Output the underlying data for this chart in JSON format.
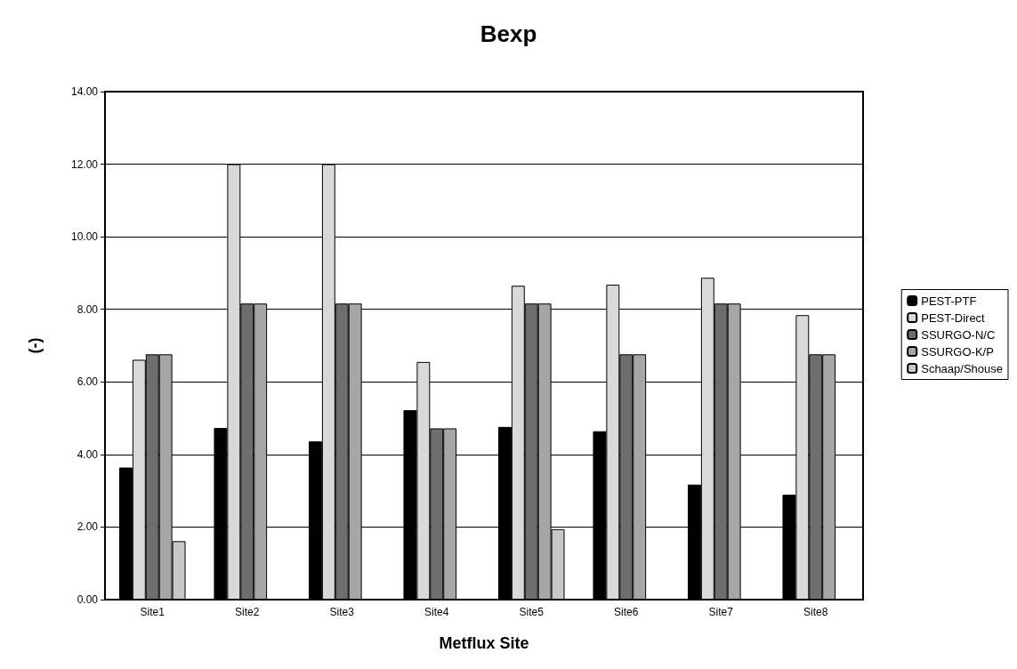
{
  "chart_data": {
    "type": "bar",
    "title": "Bexp",
    "xlabel": "Metflux Site",
    "ylabel": "(-)",
    "categories": [
      "Site1",
      "Site2",
      "Site3",
      "Site4",
      "Site5",
      "Site6",
      "Site7",
      "Site8"
    ],
    "series": [
      {
        "name": "PEST-PTF",
        "color": "#000000",
        "values": [
          3.64,
          4.73,
          4.36,
          5.22,
          4.76,
          4.64,
          3.17,
          2.89
        ]
      },
      {
        "name": "PEST-Direct",
        "color": "#d9d9d9",
        "values": [
          6.61,
          12.0,
          12.0,
          6.55,
          8.65,
          8.68,
          8.87,
          7.84
        ]
      },
      {
        "name": "SSURGO-N/C",
        "color": "#6e6e6e",
        "values": [
          6.76,
          8.16,
          8.16,
          4.72,
          8.16,
          6.76,
          8.16,
          6.76
        ]
      },
      {
        "name": "SSURGO-K/P",
        "color": "#a6a6a6",
        "values": [
          6.76,
          8.16,
          8.16,
          4.72,
          8.16,
          6.76,
          8.16,
          6.76
        ]
      },
      {
        "name": "Schaap/Shouse",
        "color": "#c8c8c8",
        "values": [
          1.61,
          null,
          null,
          null,
          1.94,
          null,
          null,
          null
        ]
      }
    ],
    "ylim": [
      0,
      14
    ],
    "yticks": [
      {
        "value": 0,
        "label": "0.00"
      },
      {
        "value": 2,
        "label": "2.00"
      },
      {
        "value": 4,
        "label": "4.00"
      },
      {
        "value": 6,
        "label": "6.00"
      },
      {
        "value": 8,
        "label": "8.00"
      },
      {
        "value": 10,
        "label": "10.00"
      },
      {
        "value": 12,
        "label": "12.00"
      },
      {
        "value": 14,
        "label": "14.00"
      }
    ],
    "grid": "y",
    "legend": "right"
  }
}
